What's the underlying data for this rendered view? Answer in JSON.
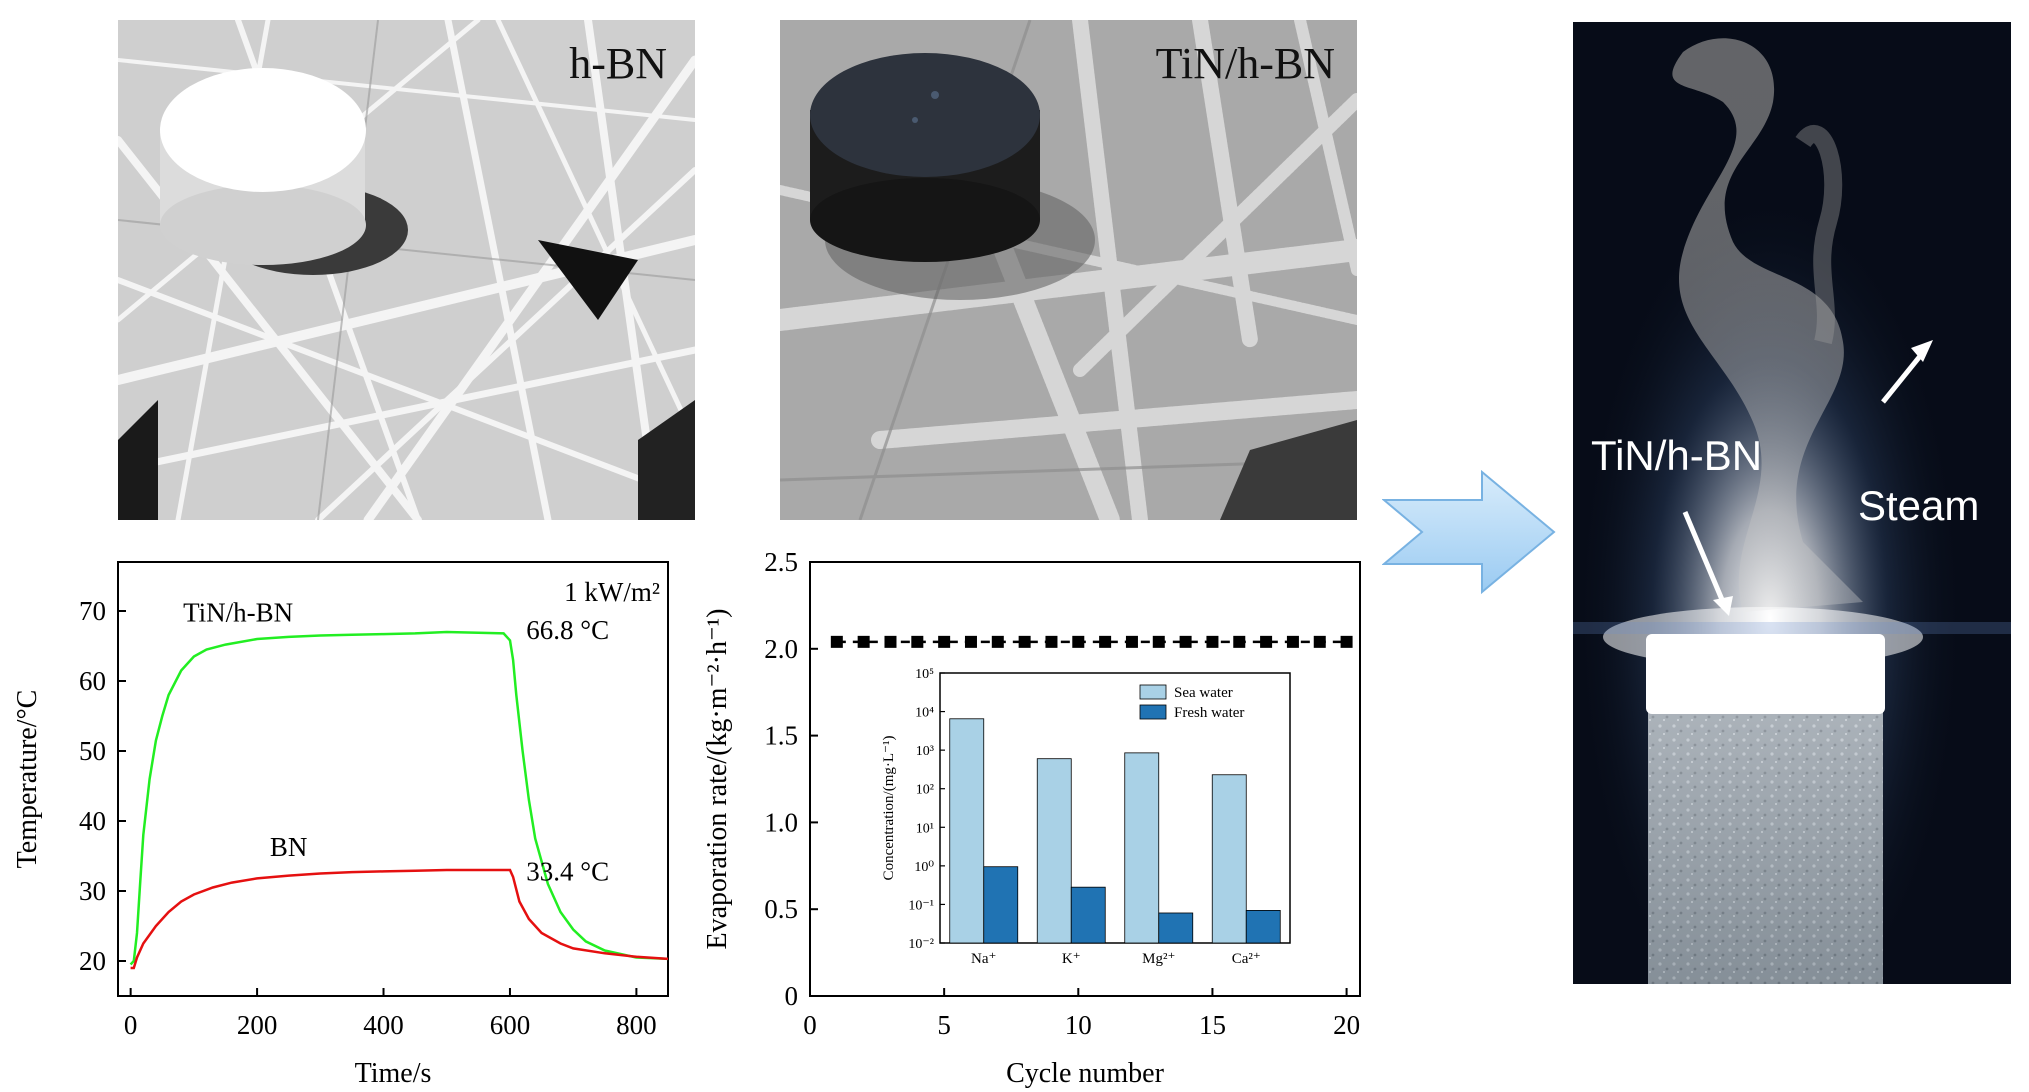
{
  "photos": {
    "hbn_label": "h-BN",
    "tin_label": "TiN/h-BN",
    "device_label": "TiN/h-BN",
    "steam_label": "Steam"
  },
  "chart_data": [
    {
      "type": "line",
      "title": "",
      "annotation_power": "1 kW/m²",
      "xlabel": "Time/s",
      "ylabel": "Temperature/°C",
      "xlim": [
        -20,
        850
      ],
      "ylim": [
        15,
        77
      ],
      "xticks": [
        0,
        200,
        400,
        600,
        800
      ],
      "yticks": [
        20,
        30,
        40,
        50,
        60,
        70
      ],
      "series": [
        {
          "name": "TiN/h-BN",
          "color": "#22ee22",
          "end_label": "66.8 °C",
          "x": [
            0,
            5,
            10,
            15,
            20,
            30,
            40,
            50,
            60,
            80,
            100,
            120,
            150,
            200,
            250,
            300,
            350,
            400,
            450,
            500,
            550,
            590,
            600,
            605,
            610,
            620,
            630,
            640,
            660,
            680,
            700,
            720,
            750,
            800,
            850
          ],
          "y": [
            19.5,
            20,
            24,
            31,
            38,
            46,
            51.5,
            55,
            58,
            61.5,
            63.5,
            64.5,
            65.2,
            66,
            66.3,
            66.5,
            66.6,
            66.7,
            66.8,
            67,
            66.9,
            66.8,
            65.8,
            63,
            58,
            50,
            43,
            37.5,
            31,
            27,
            24.5,
            22.8,
            21.5,
            20.5,
            20.3
          ]
        },
        {
          "name": "BN",
          "color": "#e51010",
          "end_label": "33.4 °C",
          "x": [
            0,
            5,
            10,
            20,
            40,
            60,
            80,
            100,
            130,
            160,
            200,
            250,
            300,
            350,
            400,
            450,
            500,
            550,
            600,
            605,
            615,
            630,
            650,
            680,
            700,
            750,
            800,
            850
          ],
          "y": [
            19,
            19,
            20.5,
            22.5,
            25,
            27,
            28.5,
            29.5,
            30.5,
            31.2,
            31.8,
            32.2,
            32.5,
            32.7,
            32.8,
            32.9,
            33,
            33,
            33,
            32,
            28.5,
            26,
            24,
            22.5,
            21.8,
            21.1,
            20.6,
            20.3
          ]
        }
      ]
    },
    {
      "type": "scatter",
      "title": "",
      "xlabel": "Cycle number",
      "ylabel": "Evaporation rate/(kg·m⁻²·h⁻¹)",
      "xlim": [
        0,
        20.5
      ],
      "ylim": [
        0,
        2.5
      ],
      "xticks": [
        0,
        5,
        10,
        15,
        20
      ],
      "yticks": [
        0,
        0.5,
        1.0,
        1.5,
        2.0,
        2.5
      ],
      "ytick_labels": [
        "0",
        "0.5",
        "1.0",
        "1.5",
        "2.0",
        "2.5"
      ],
      "series": [
        {
          "name": "",
          "x": [
            1,
            2,
            3,
            4,
            5,
            6,
            7,
            8,
            9,
            10,
            11,
            12,
            13,
            14,
            15,
            16,
            17,
            18,
            19,
            20
          ],
          "y": [
            2.04,
            2.04,
            2.04,
            2.04,
            2.04,
            2.04,
            2.04,
            2.04,
            2.04,
            2.04,
            2.04,
            2.04,
            2.04,
            2.04,
            2.04,
            2.04,
            2.04,
            2.04,
            2.04,
            2.04
          ]
        }
      ]
    },
    {
      "type": "bar",
      "title": "",
      "scale": "log",
      "ylabel": "Concentration/(mg·L⁻¹)",
      "ylim_exp": [
        -2,
        5
      ],
      "ytick_labels": [
        "10⁻²",
        "10⁻¹",
        "10⁰",
        "10¹",
        "10²",
        "10³",
        "10⁴",
        "10⁵"
      ],
      "categories": [
        "Na⁺",
        "K⁺",
        "Mg²⁺",
        "Ca²⁺"
      ],
      "legend_position": "top-right",
      "series": [
        {
          "name": "Sea water",
          "color": "#a9d1e6",
          "values": [
            6500,
            600,
            850,
            230
          ]
        },
        {
          "name": "Fresh water",
          "color": "#2073b3",
          "values": [
            0.95,
            0.28,
            0.06,
            0.07
          ]
        }
      ]
    }
  ]
}
